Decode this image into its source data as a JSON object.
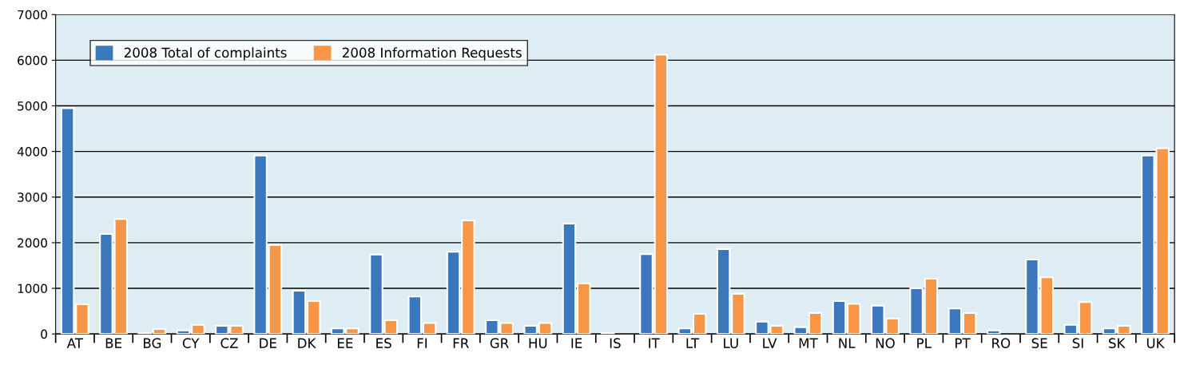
{
  "chart_data": {
    "type": "bar",
    "categories": [
      "AT",
      "BE",
      "BG",
      "CY",
      "CZ",
      "DE",
      "DK",
      "EE",
      "ES",
      "FI",
      "FR",
      "GR",
      "HU",
      "IE",
      "IS",
      "IT",
      "LT",
      "LU",
      "LV",
      "MT",
      "NL",
      "NO",
      "PL",
      "PT",
      "RO",
      "SE",
      "SI",
      "SK",
      "UK"
    ],
    "series": [
      {
        "name": "2008 Total of complaints",
        "color": "#3a77bd",
        "values": [
          4950,
          2190,
          20,
          80,
          180,
          3910,
          950,
          120,
          1740,
          820,
          1800,
          300,
          180,
          2420,
          20,
          1750,
          120,
          1860,
          270,
          150,
          720,
          620,
          1000,
          560,
          80,
          1630,
          200,
          120,
          3910
        ]
      },
      {
        "name": "2008 Information Requests",
        "color": "#f79646",
        "values": [
          650,
          2520,
          110,
          200,
          180,
          1950,
          720,
          120,
          300,
          240,
          2490,
          240,
          240,
          1110,
          null,
          6120,
          440,
          880,
          180,
          460,
          660,
          340,
          1210,
          460,
          null,
          1240,
          700,
          180,
          4070
        ]
      }
    ],
    "ylim": [
      0,
      7000
    ],
    "yticks": [
      0,
      1000,
      2000,
      3000,
      4000,
      5000,
      6000,
      7000
    ],
    "grid": "y",
    "legend": "top left"
  }
}
